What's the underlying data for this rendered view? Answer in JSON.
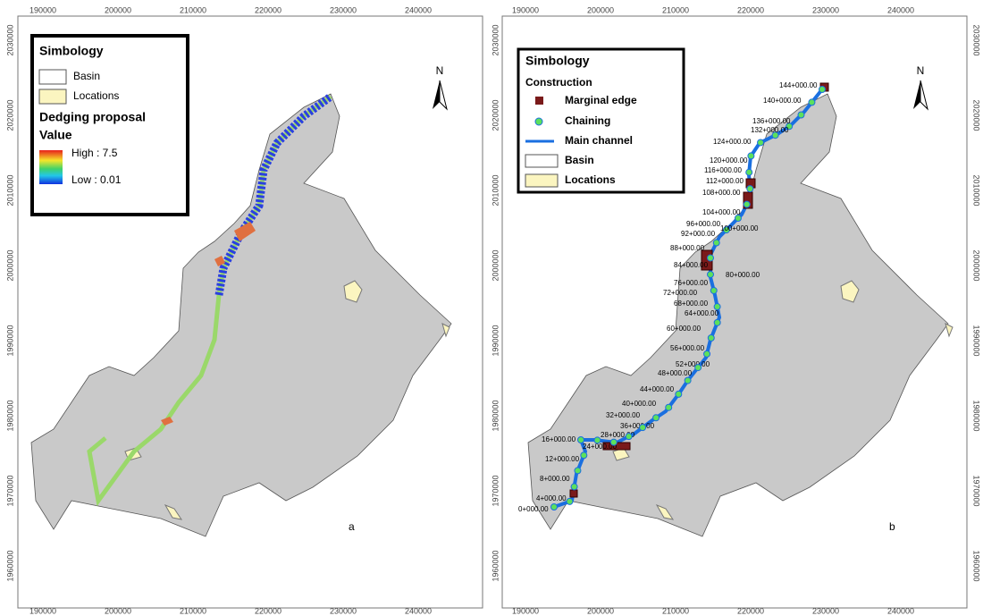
{
  "panels": [
    {
      "label": "a",
      "north": "N",
      "x_labels": [
        190000,
        200000,
        210000,
        220000,
        230000,
        240000
      ],
      "y_labels": [
        2030000,
        2020000,
        2010000,
        2000000,
        1990000,
        1980000,
        1970000,
        1960000
      ],
      "legend": {
        "title": "Simbology",
        "items": [
          "Basin",
          "Locations"
        ],
        "ramp_title": "Dedging proposal",
        "ramp_subtitle": "Value",
        "high": "High : 7.5",
        "low": "Low : 0.01"
      }
    },
    {
      "label": "b",
      "north": "N",
      "x_labels": [
        190000,
        200000,
        210000,
        220000,
        230000,
        240000
      ],
      "y_labels": [
        2030000,
        2020000,
        2010000,
        2000000,
        1990000,
        1980000,
        1970000,
        1960000
      ],
      "legend": {
        "title": "Simbology",
        "group": "Construction",
        "items": [
          "Marginal edge",
          "Chaining",
          "Main channel",
          "Basin",
          "Locations"
        ]
      },
      "chainages": [
        "0+000.00",
        "4+000.00",
        "8+000.00",
        "12+000.00",
        "16+000.00",
        "24+000.00",
        "28+000.00",
        "32+000.00",
        "36+000.00",
        "40+000.00",
        "44+000.00",
        "48+000.00",
        "52+000.00",
        "56+000.00",
        "60+000.00",
        "64+000.00",
        "68+000.00",
        "72+000.00",
        "76+000.00",
        "80+000.00",
        "84+000.00",
        "88+000.00",
        "92+000.00",
        "96+000.00",
        "100+000.00",
        "104+000.00",
        "108+000.00",
        "112+000.00",
        "116+000.00",
        "120+000.00",
        "124+000.00",
        "132+000.00",
        "136+000.00",
        "140+000.00",
        "144+000.00"
      ]
    }
  ]
}
